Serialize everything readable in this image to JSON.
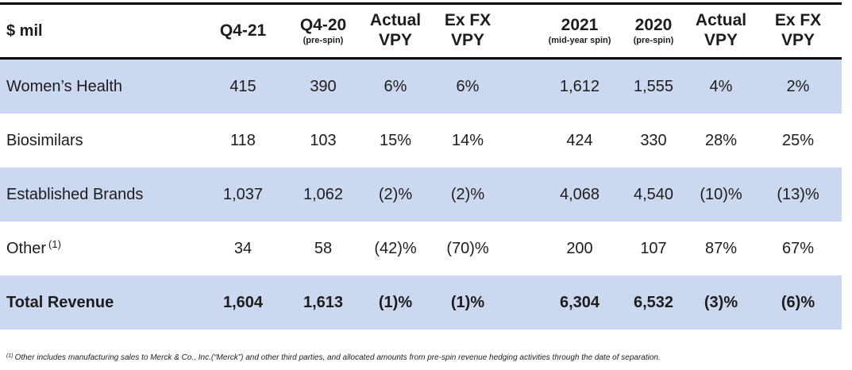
{
  "colors": {
    "row_highlight": "#ccd8f0",
    "text": "#1d1d1b",
    "rule": "#000000",
    "background": "#ffffff"
  },
  "table": {
    "unit_label": "$ mil",
    "columns": [
      {
        "line1": "Q4-21",
        "line2": ""
      },
      {
        "line1": "Q4-20",
        "line2": "(pre-spin)"
      },
      {
        "line1": "Actual",
        "line2": "VPY"
      },
      {
        "line1": "Ex FX",
        "line2": "VPY"
      },
      {
        "line1": "2021",
        "line2": "(mid-year spin)"
      },
      {
        "line1": "2020",
        "line2": "(pre-spin)"
      },
      {
        "line1": "Actual",
        "line2": "VPY"
      },
      {
        "line1": "Ex FX",
        "line2": "VPY"
      }
    ],
    "rows": [
      {
        "label": "Women’s Health",
        "sup": "",
        "values": [
          "415",
          "390",
          "6%",
          "6%",
          "1,612",
          "1,555",
          "4%",
          "2%"
        ]
      },
      {
        "label": "Biosimilars",
        "sup": "",
        "values": [
          "118",
          "103",
          "15%",
          "14%",
          "424",
          "330",
          "28%",
          "25%"
        ]
      },
      {
        "label": "Established Brands",
        "sup": "",
        "values": [
          "1,037",
          "1,062",
          "(2)%",
          "(2)%",
          "4,068",
          "4,540",
          "(10)%",
          "(13)%"
        ]
      },
      {
        "label": "Other",
        "sup": "(1)",
        "values": [
          "34",
          "58",
          "(42)%",
          "(70)%",
          "200",
          "107",
          "87%",
          "67%"
        ]
      },
      {
        "label": "Total Revenue",
        "sup": "",
        "values": [
          "1,604",
          "1,613",
          "(1)%",
          "(1)%",
          "6,304",
          "6,532",
          "(3)%",
          "(6)%"
        ]
      }
    ]
  },
  "footnote": {
    "sup": "(1)",
    "text": "Other includes manufacturing sales to Merck & Co., Inc.(“Merck”) and other third parties, and allocated amounts from pre-spin revenue hedging activities through the date of separation."
  }
}
